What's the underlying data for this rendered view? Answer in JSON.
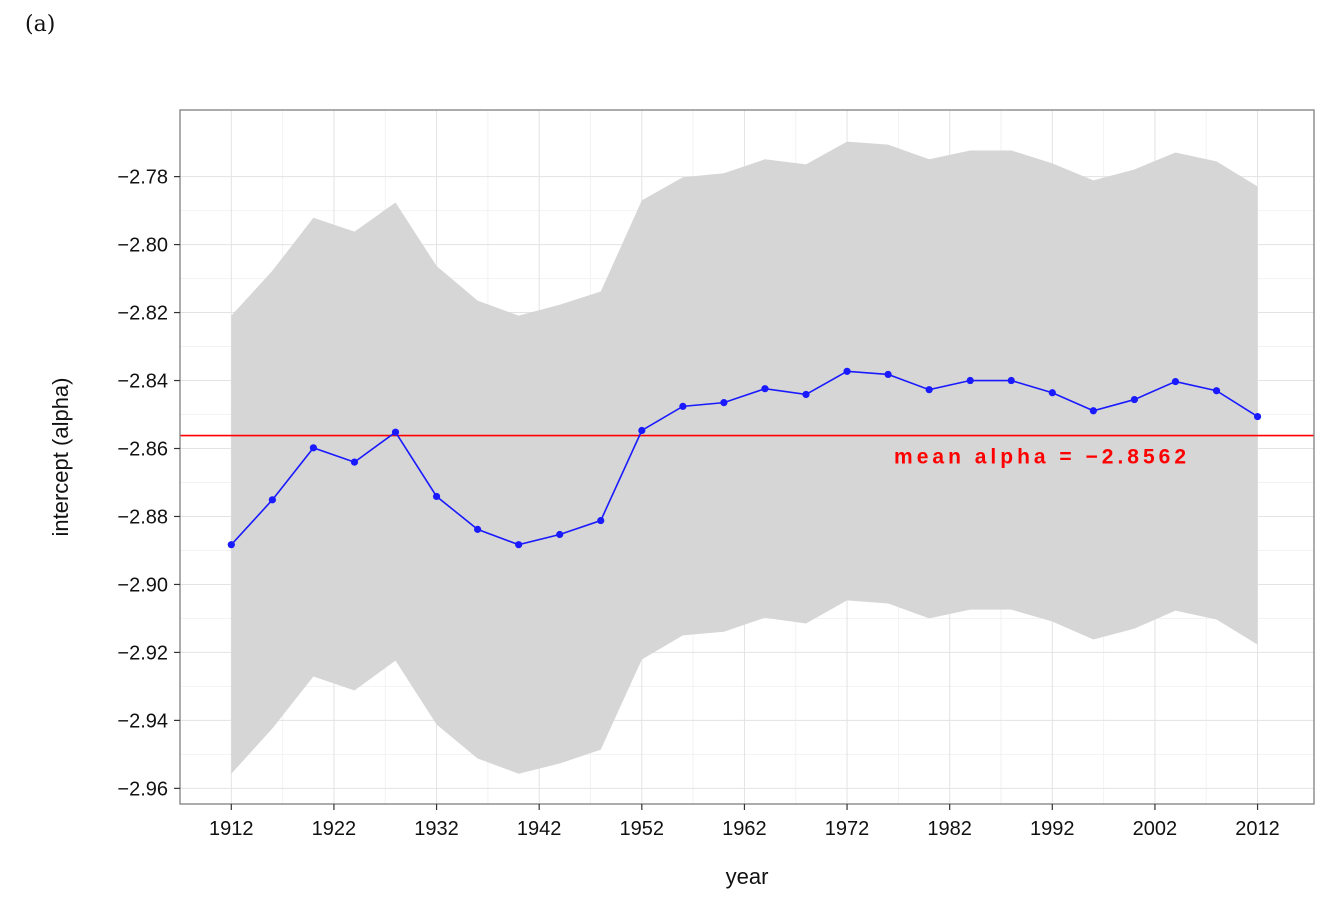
{
  "panel_label": "(a)",
  "chart_data": {
    "type": "line",
    "title": "",
    "xlabel": "year",
    "ylabel": "intercept (alpha)",
    "xlim": [
      1907,
      2017.5
    ],
    "ylim": [
      -2.9646,
      -2.7604
    ],
    "grid": true,
    "x_ticks": [
      1912,
      1922,
      1932,
      1942,
      1952,
      1962,
      1972,
      1982,
      1992,
      2002,
      2012
    ],
    "x_tick_labels": [
      "1912",
      "1922",
      "1932",
      "1942",
      "1952",
      "1962",
      "1972",
      "1982",
      "1992",
      "2002",
      "2012"
    ],
    "y_ticks": [
      -2.96,
      -2.94,
      -2.92,
      -2.9,
      -2.88,
      -2.86,
      -2.84,
      -2.82,
      -2.8,
      -2.78
    ],
    "y_tick_labels": [
      "−2.96",
      "−2.94",
      "−2.92",
      "−2.90",
      "−2.88",
      "−2.86",
      "−2.84",
      "−2.82",
      "−2.80",
      "−2.78"
    ],
    "x": [
      1912,
      1916,
      1920,
      1924,
      1928,
      1932,
      1936,
      1940,
      1944,
      1948,
      1952,
      1956,
      1960,
      1964,
      1968,
      1972,
      1976,
      1980,
      1984,
      1988,
      1992,
      1996,
      2000,
      2004,
      2008,
      2012
    ],
    "series": [
      {
        "values": [
          -2.8883,
          -2.8751,
          -2.8598,
          -2.864,
          -2.8552,
          -2.8741,
          -2.8838,
          -2.8883,
          -2.8853,
          -2.8812,
          -2.8547,
          -2.8476,
          -2.8465,
          -2.8424,
          -2.8441,
          -2.8373,
          -2.8382,
          -2.8427,
          -2.84,
          -2.84,
          -2.8436,
          -2.8489,
          -2.8456,
          -2.8403,
          -2.843,
          -2.8506
        ],
        "color": "#1a1aff"
      }
    ],
    "band": {
      "upper": [
        -2.8209,
        -2.8077,
        -2.7921,
        -2.7962,
        -2.7876,
        -2.8063,
        -2.8165,
        -2.8209,
        -2.8177,
        -2.8138,
        -2.787,
        -2.7802,
        -2.779,
        -2.7749,
        -2.7764,
        -2.7697,
        -2.7706,
        -2.7749,
        -2.7723,
        -2.7723,
        -2.7761,
        -2.7811,
        -2.7779,
        -2.7729,
        -2.7755,
        -2.7829
      ],
      "lower": [
        -2.9557,
        -2.9424,
        -2.9271,
        -2.9312,
        -2.9224,
        -2.9412,
        -2.9512,
        -2.9557,
        -2.9527,
        -2.9486,
        -2.9221,
        -2.915,
        -2.9139,
        -2.9098,
        -2.9115,
        -2.9047,
        -2.9056,
        -2.91,
        -2.9074,
        -2.9074,
        -2.9109,
        -2.9162,
        -2.913,
        -2.9077,
        -2.9103,
        -2.9177
      ],
      "color": "#d6d6d6"
    },
    "reference_line": {
      "y": -2.8562,
      "color": "#ff0000"
    },
    "annotations": [
      {
        "text": "mean alpha = −2.8562",
        "x": 1991,
        "y": -2.862,
        "color": "#ff0000"
      }
    ]
  }
}
